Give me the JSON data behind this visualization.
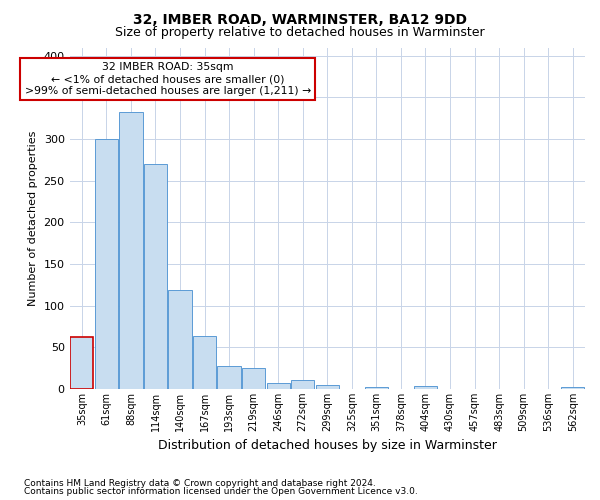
{
  "title": "32, IMBER ROAD, WARMINSTER, BA12 9DD",
  "subtitle": "Size of property relative to detached houses in Warminster",
  "xlabel": "Distribution of detached houses by size in Warminster",
  "ylabel": "Number of detached properties",
  "footnote1": "Contains HM Land Registry data © Crown copyright and database right 2024.",
  "footnote2": "Contains public sector information licensed under the Open Government Licence v3.0.",
  "bar_labels": [
    "35sqm",
    "61sqm",
    "88sqm",
    "114sqm",
    "140sqm",
    "167sqm",
    "193sqm",
    "219sqm",
    "246sqm",
    "272sqm",
    "299sqm",
    "325sqm",
    "351sqm",
    "378sqm",
    "404sqm",
    "430sqm",
    "457sqm",
    "483sqm",
    "509sqm",
    "536sqm",
    "562sqm"
  ],
  "bar_values": [
    62,
    300,
    333,
    270,
    119,
    63,
    28,
    25,
    7,
    11,
    5,
    0,
    2,
    0,
    3,
    0,
    0,
    0,
    0,
    0,
    2
  ],
  "bar_color": "#c8ddf0",
  "bar_edge_color": "#5b9bd5",
  "highlight_bar_index": 0,
  "highlight_edge_color": "#cc0000",
  "annotation_text": "32 IMBER ROAD: 35sqm\n← <1% of detached houses are smaller (0)\n>99% of semi-detached houses are larger (1,211) →",
  "annotation_box_facecolor": "#ffffff",
  "annotation_box_edgecolor": "#cc0000",
  "ylim": [
    0,
    410
  ],
  "yticks": [
    0,
    50,
    100,
    150,
    200,
    250,
    300,
    350,
    400
  ],
  "grid_color": "#c8d4e8",
  "background_color": "#ffffff",
  "plot_bg_color": "#ffffff",
  "title_fontsize": 10,
  "subtitle_fontsize": 9,
  "ylabel_fontsize": 8,
  "xlabel_fontsize": 9,
  "footnote_fontsize": 6.5
}
